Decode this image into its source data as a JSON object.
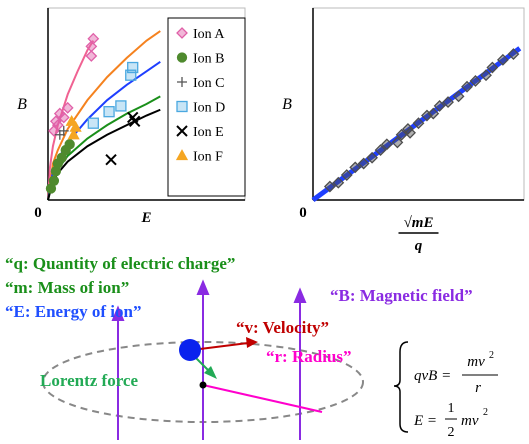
{
  "chart_data": [
    {
      "type": "scatter",
      "y_label": "B",
      "x_label": "E",
      "origin_label": "0",
      "xlim": [
        0,
        10
      ],
      "ylim": [
        0,
        10
      ],
      "legend": "right",
      "series": [
        {
          "name": "Ion A",
          "marker": "diamond",
          "color": "#e060a8",
          "x": [
            0.3,
            0.4,
            0.5,
            0.6,
            0.8,
            1.0,
            2.2,
            2.2,
            2.3
          ],
          "y": [
            3.6,
            4.1,
            3.9,
            4.5,
            4.3,
            4.8,
            7.5,
            8.0,
            8.4
          ]
        },
        {
          "name": "Ion B",
          "marker": "circle",
          "color": "#4f8a2e",
          "x": [
            0.15,
            0.3,
            0.4,
            0.5,
            0.7,
            0.9,
            1.1
          ],
          "y": [
            0.6,
            1.0,
            1.5,
            1.9,
            2.2,
            2.6,
            2.9
          ]
        },
        {
          "name": "Ion C",
          "marker": "plus",
          "color": "#555555",
          "x": [
            0.6,
            0.8
          ],
          "y": [
            3.4,
            3.6
          ]
        },
        {
          "name": "Ion D",
          "marker": "square",
          "color": "#4aa8e0",
          "x": [
            2.3,
            3.1,
            3.7,
            4.2,
            4.3
          ],
          "y": [
            4.0,
            4.6,
            4.9,
            6.5,
            6.9
          ]
        },
        {
          "name": "Ion E",
          "marker": "x",
          "color": "#000000",
          "x": [
            3.2,
            4.4,
            4.3
          ],
          "y": [
            2.1,
            4.1,
            4.3
          ]
        },
        {
          "name": "Ion F",
          "marker": "triangle",
          "color": "#f5a623",
          "x": [
            1.3,
            1.4,
            1.2
          ],
          "y": [
            3.4,
            3.8,
            4.1
          ]
        }
      ],
      "fits": [
        {
          "color": "#f06292",
          "x": [
            0,
            0.1,
            0.25,
            0.5,
            1,
            1.5,
            2,
            2.3
          ],
          "y": [
            0,
            1.7,
            2.8,
            3.9,
            5.5,
            6.7,
            7.8,
            8.3
          ]
        },
        {
          "color": "#f5821f",
          "x": [
            0,
            0.25,
            0.5,
            1,
            2,
            3,
            4,
            5,
            5.7
          ],
          "y": [
            0,
            1.9,
            2.6,
            3.7,
            5.2,
            6.4,
            7.4,
            8.3,
            8.8
          ]
        },
        {
          "color": "#1f3fff",
          "x": [
            0,
            0.25,
            0.5,
            1,
            2,
            3,
            4,
            5,
            5.7
          ],
          "y": [
            0,
            1.5,
            2.1,
            3.0,
            4.2,
            5.2,
            6.0,
            6.7,
            7.2
          ]
        },
        {
          "color": "#1a8f1a",
          "x": [
            0,
            0.25,
            0.5,
            1,
            2,
            3,
            4,
            5,
            5.7
          ],
          "y": [
            0,
            1.1,
            1.6,
            2.3,
            3.2,
            3.9,
            4.5,
            5.0,
            5.4
          ]
        },
        {
          "color": "#000000",
          "x": [
            0,
            0.25,
            0.5,
            1,
            2,
            3,
            4,
            5,
            5.7
          ],
          "y": [
            0,
            1.0,
            1.4,
            2.0,
            2.8,
            3.4,
            3.9,
            4.4,
            4.7
          ]
        }
      ]
    },
    {
      "type": "scatter",
      "y_label": "B",
      "x_label": {
        "numerator": "√mE",
        "denominator": "q"
      },
      "origin_label": "0",
      "xlim": [
        0,
        10
      ],
      "ylim": [
        0,
        10
      ],
      "series": [
        {
          "marker": "diamond",
          "color": "#4d4d4d",
          "x": [
            0.8,
            1.2,
            1.6,
            2.0,
            2.4,
            2.8,
            3.2,
            3.5,
            4.0,
            4.2,
            4.5,
            4.6,
            5.0,
            5.4,
            5.7,
            6.0,
            6.4,
            6.9,
            7.3,
            7.7,
            8.2,
            8.5,
            9.0,
            9.5
          ],
          "y": [
            0.7,
            0.9,
            1.3,
            1.7,
            1.9,
            2.2,
            2.6,
            2.9,
            3.0,
            3.4,
            3.7,
            3.5,
            4.0,
            4.4,
            4.5,
            4.9,
            5.1,
            5.4,
            5.9,
            6.2,
            6.5,
            6.9,
            7.3,
            7.6
          ]
        }
      ],
      "fits": [
        {
          "color": "#1f3fff",
          "x": [
            0,
            9.8
          ],
          "y": [
            0,
            7.9
          ]
        }
      ]
    }
  ],
  "diagram": {
    "q_label": "“q: Quantity of electric charge”",
    "m_label": "“m: Mass of ion”",
    "e_label": "“E: Energy of ion”",
    "b_label": "“B: Magnetic field”",
    "v_label": "“v: Velocity”",
    "force_label": "Lorentz force",
    "r_label": "“r: Radius”",
    "equation1": {
      "left": "qvB =",
      "numerator": "mv",
      "exponent": "2",
      "denominator": "r"
    },
    "equation2": {
      "left": "E =",
      "numerator": "1",
      "denominator": "2",
      "term": "mv",
      "exponent": "2"
    }
  }
}
